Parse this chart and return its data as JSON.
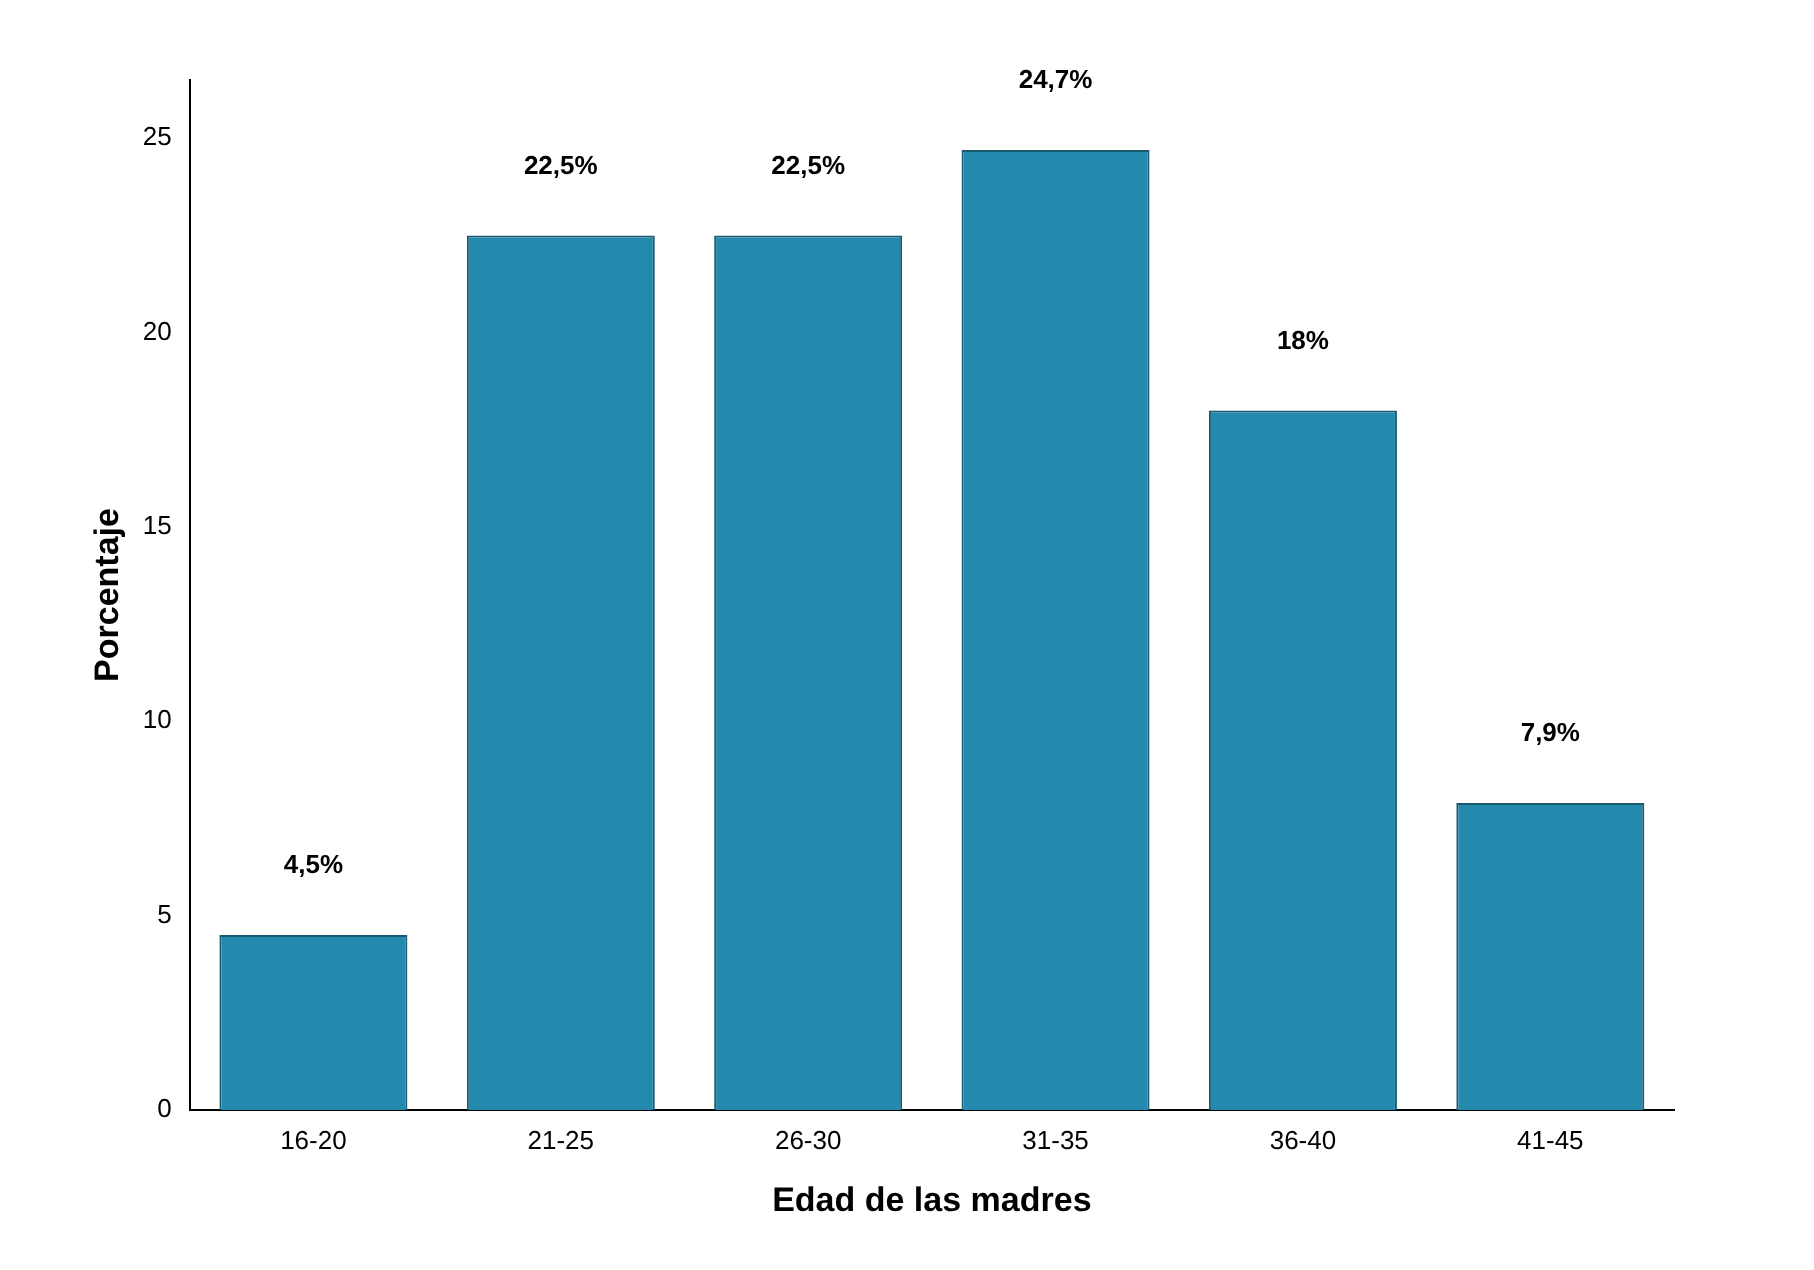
{
  "chart_data": {
    "type": "bar",
    "xlabel": "Edad de las madres",
    "ylabel": "Porcentaje",
    "categories": [
      "16-20",
      "21-25",
      "26-30",
      "31-35",
      "36-40",
      "41-45"
    ],
    "values": [
      4.5,
      22.5,
      22.5,
      24.7,
      18,
      7.9
    ],
    "value_labels": [
      "4,5%",
      "22,5%",
      "22,5%",
      "24,7%",
      "18%",
      "7,9%"
    ],
    "color": "#248aad",
    "ylim": [
      0,
      26.5
    ],
    "yticks": [
      0,
      5,
      10,
      15,
      20,
      25
    ],
    "grid": false,
    "legend": false
  }
}
